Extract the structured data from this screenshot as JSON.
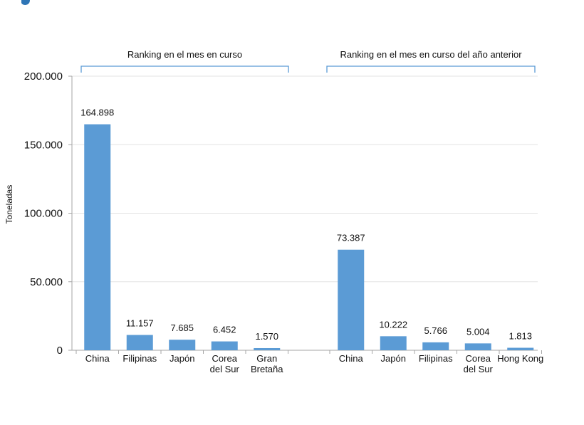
{
  "chart_data": {
    "type": "bar",
    "ylabel": "Toneladas",
    "ylim": [
      0,
      200000
    ],
    "yticks": [
      {
        "value": 0,
        "label": "0"
      },
      {
        "value": 50000,
        "label": "50.000"
      },
      {
        "value": 100000,
        "label": "100.000"
      },
      {
        "value": 150000,
        "label": "150.000"
      },
      {
        "value": 200000,
        "label": "200.000"
      }
    ],
    "grid": true,
    "groups": [
      {
        "title": "Ranking en el mes en curso",
        "categories": [
          "China",
          "Filipinas",
          "Japón",
          "Corea\ndel Sur",
          "Gran\nBretaña"
        ],
        "values": [
          164898,
          11157,
          7685,
          6452,
          1570
        ],
        "value_labels": [
          "164.898",
          "11.157",
          "7.685",
          "6.452",
          "1.570"
        ]
      },
      {
        "title": "Ranking en el mes en curso del año anterior",
        "categories": [
          "China",
          "Japón",
          "Filipinas",
          "Corea\ndel Sur",
          "Hong Kong"
        ],
        "values": [
          73387,
          10222,
          5766,
          5004,
          1813
        ],
        "value_labels": [
          "73.387",
          "10.222",
          "5.766",
          "5.004",
          "1.813"
        ]
      }
    ]
  },
  "colors": {
    "bar": "#5b9bd5",
    "bracket": "#5b9bd5",
    "grid": "#e3e3e3",
    "axis": "#a6a6a6",
    "logo": "#2e75b6"
  }
}
